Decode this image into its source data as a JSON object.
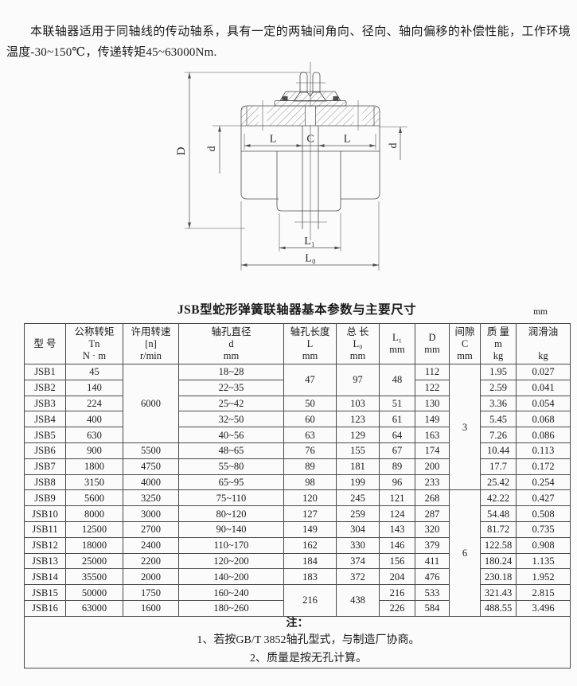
{
  "intro": {
    "text": "本联轴器适用于同轴线的传动轴系，具有一定的两轴间角向、径向、轴向偏移的补偿性能，工作环境温度-30~150℃，传递转矩45~63000Nm."
  },
  "diagram": {
    "labels": {
      "D": "D",
      "d_left": "d",
      "d_right": "d",
      "L_left": "L",
      "C": "C",
      "L_right": "L",
      "L1": "L₁",
      "L0": "L₀"
    }
  },
  "table": {
    "title": "JSB型蛇形弹簧联轴器基本参数与主要尺寸",
    "unit": "mm",
    "columns": [
      {
        "key": "model",
        "header": [
          "型  号"
        ]
      },
      {
        "key": "tn",
        "header": [
          "公称转矩",
          "Tn",
          "N · m"
        ]
      },
      {
        "key": "n",
        "header": [
          "许用转速",
          "[n]",
          "r/min"
        ]
      },
      {
        "key": "d",
        "header": [
          "轴孔直径",
          "d",
          "mm"
        ]
      },
      {
        "key": "L",
        "header": [
          "轴孔长度",
          "L",
          "mm"
        ]
      },
      {
        "key": "L0",
        "header": [
          "总  长",
          "L₀",
          "mm"
        ]
      },
      {
        "key": "L1",
        "header": [
          "L₁",
          "mm"
        ]
      },
      {
        "key": "D",
        "header": [
          "D",
          "mm"
        ]
      },
      {
        "key": "C",
        "header": [
          "间隙",
          "C",
          "mm"
        ]
      },
      {
        "key": "m",
        "header": [
          "质  量",
          "m",
          "kg"
        ]
      },
      {
        "key": "oil",
        "header": [
          "润滑油",
          "",
          "kg"
        ]
      }
    ],
    "rows": [
      [
        "JSB1",
        "45",
        [
          "6000",
          5
        ],
        "18~28",
        [
          "47",
          2
        ],
        [
          "97",
          2
        ],
        [
          "48",
          2
        ],
        "112",
        [
          "3",
          8
        ],
        "1.95",
        "0.027"
      ],
      [
        "JSB2",
        "140",
        0,
        "22~35",
        0,
        0,
        0,
        "122",
        0,
        "2.59",
        "0.041"
      ],
      [
        "JSB3",
        "224",
        0,
        "25~42",
        "50",
        "103",
        "51",
        "130",
        0,
        "3.36",
        "0.054"
      ],
      [
        "JSB4",
        "400",
        0,
        "32~50",
        "60",
        "123",
        "61",
        "149",
        0,
        "5.45",
        "0.068"
      ],
      [
        "JSB5",
        "630",
        0,
        "40~56",
        "63",
        "129",
        "64",
        "163",
        0,
        "7.26",
        "0.086"
      ],
      [
        "JSB6",
        "900",
        "5500",
        "48~65",
        "76",
        "155",
        "67",
        "174",
        0,
        "10.44",
        "0.113"
      ],
      [
        "JSB7",
        "1800",
        "4750",
        "55~80",
        "89",
        "181",
        "89",
        "200",
        0,
        "17.7",
        "0.172"
      ],
      [
        "JSB8",
        "3150",
        "4000",
        "65~95",
        "98",
        "199",
        "96",
        "233",
        0,
        "25.42",
        "0.254"
      ],
      [
        "JSB9",
        "5600",
        "3250",
        "75~110",
        "120",
        "245",
        "121",
        "268",
        [
          "6",
          8
        ],
        "42.22",
        "0.427"
      ],
      [
        "JSB10",
        "8000",
        "3000",
        "80~120",
        "127",
        "259",
        "124",
        "287",
        0,
        "54.48",
        "0.508"
      ],
      [
        "JSB11",
        "12500",
        "2700",
        "90~140",
        "149",
        "304",
        "143",
        "320",
        0,
        "81.72",
        "0.735"
      ],
      [
        "JSB12",
        "18000",
        "2400",
        "110~170",
        "162",
        "330",
        "146",
        "379",
        0,
        "122.58",
        "0.908"
      ],
      [
        "JSB13",
        "25000",
        "2200",
        "120~200",
        "184",
        "374",
        "156",
        "411",
        0,
        "180.24",
        "1.135"
      ],
      [
        "JSB14",
        "35500",
        "2000",
        "140~200",
        "183",
        "372",
        "204",
        "476",
        0,
        "230.18",
        "1.952"
      ],
      [
        "JSB15",
        "50000",
        "1750",
        "160~240",
        [
          "216",
          2
        ],
        [
          "438",
          2
        ],
        "216",
        "533",
        0,
        "321.43",
        "2.815"
      ],
      [
        "JSB16",
        "63000",
        "1600",
        "180~260",
        0,
        0,
        "226",
        "584",
        0,
        "488.55",
        "3.496"
      ]
    ]
  },
  "notes": {
    "label": "注：",
    "items": [
      "1、若按GB/T  3852轴孔型式，与制造厂协商。",
      "2、质量是按无孔计算。"
    ]
  }
}
